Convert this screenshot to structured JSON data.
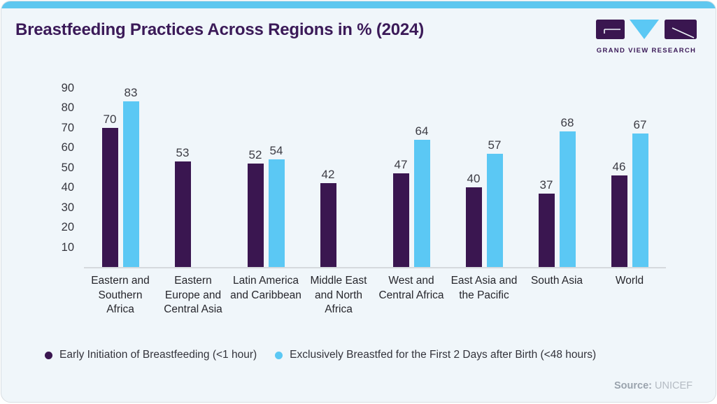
{
  "header": {
    "title": "Breastfeeding Practices Across Regions in % (2024)",
    "brand": "GRAND VIEW RESEARCH"
  },
  "chart_data": {
    "type": "bar",
    "title": "Breastfeeding Practices Across Regions in % (2024)",
    "categories": [
      "Eastern and Southern Africa",
      "Eastern Europe and Central Asia",
      "Latin America and Caribbean",
      "Middle East and North Africa",
      "West and Central Africa",
      "East Asia and the Pacific",
      "South Asia",
      "World"
    ],
    "series": [
      {
        "name": "Early Initiation of Breastfeeding (<1 hour)",
        "color": "#3a1650",
        "values": [
          70,
          53,
          52,
          42,
          47,
          40,
          37,
          46
        ]
      },
      {
        "name": "Exclusively Breastfed for the First 2 Days after Birth (<48 hours)",
        "color": "#5bc8f4",
        "values": [
          83,
          null,
          54,
          null,
          64,
          57,
          68,
          67
        ]
      }
    ],
    "xlabel": "",
    "ylabel": "",
    "ylim": [
      0,
      90
    ],
    "yticks": [
      90,
      80,
      70,
      60,
      50,
      40,
      30,
      20,
      10
    ],
    "grid": false,
    "value_labels": true,
    "legend_position": "bottom"
  },
  "source": {
    "label": "Source:",
    "value": "UNICEF"
  },
  "colors": {
    "accent_strip": "#5fc7ef",
    "card_background": "#f0f6fa",
    "title_text": "#3b1a58",
    "bar_dark_purple": "#3a1650",
    "bar_light_blue": "#5bc8f4",
    "axis_line": "#d5d9dd"
  }
}
